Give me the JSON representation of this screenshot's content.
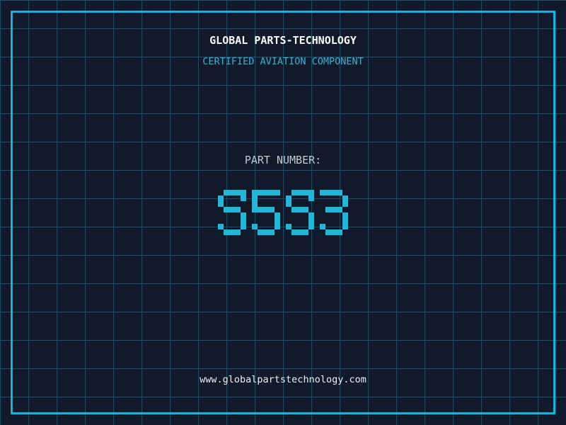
{
  "header": {
    "title": "GLOBAL PARTS-TECHNOLOGY",
    "subtitle": "CERTIFIED AVIATION COMPONENT"
  },
  "part": {
    "label": "PART NUMBER:",
    "value": "S5S3"
  },
  "footer": {
    "url": "www.globalpartstechnology.com"
  },
  "colors": {
    "background": "#101a2a",
    "grid_line": "#1d4c64",
    "frame": "#10b4de",
    "title": "#ffffff",
    "subtitle": "#3cb0d4",
    "part_label": "#c4c9d2",
    "part_number": "#22b6d9",
    "url": "#edf0f2"
  }
}
